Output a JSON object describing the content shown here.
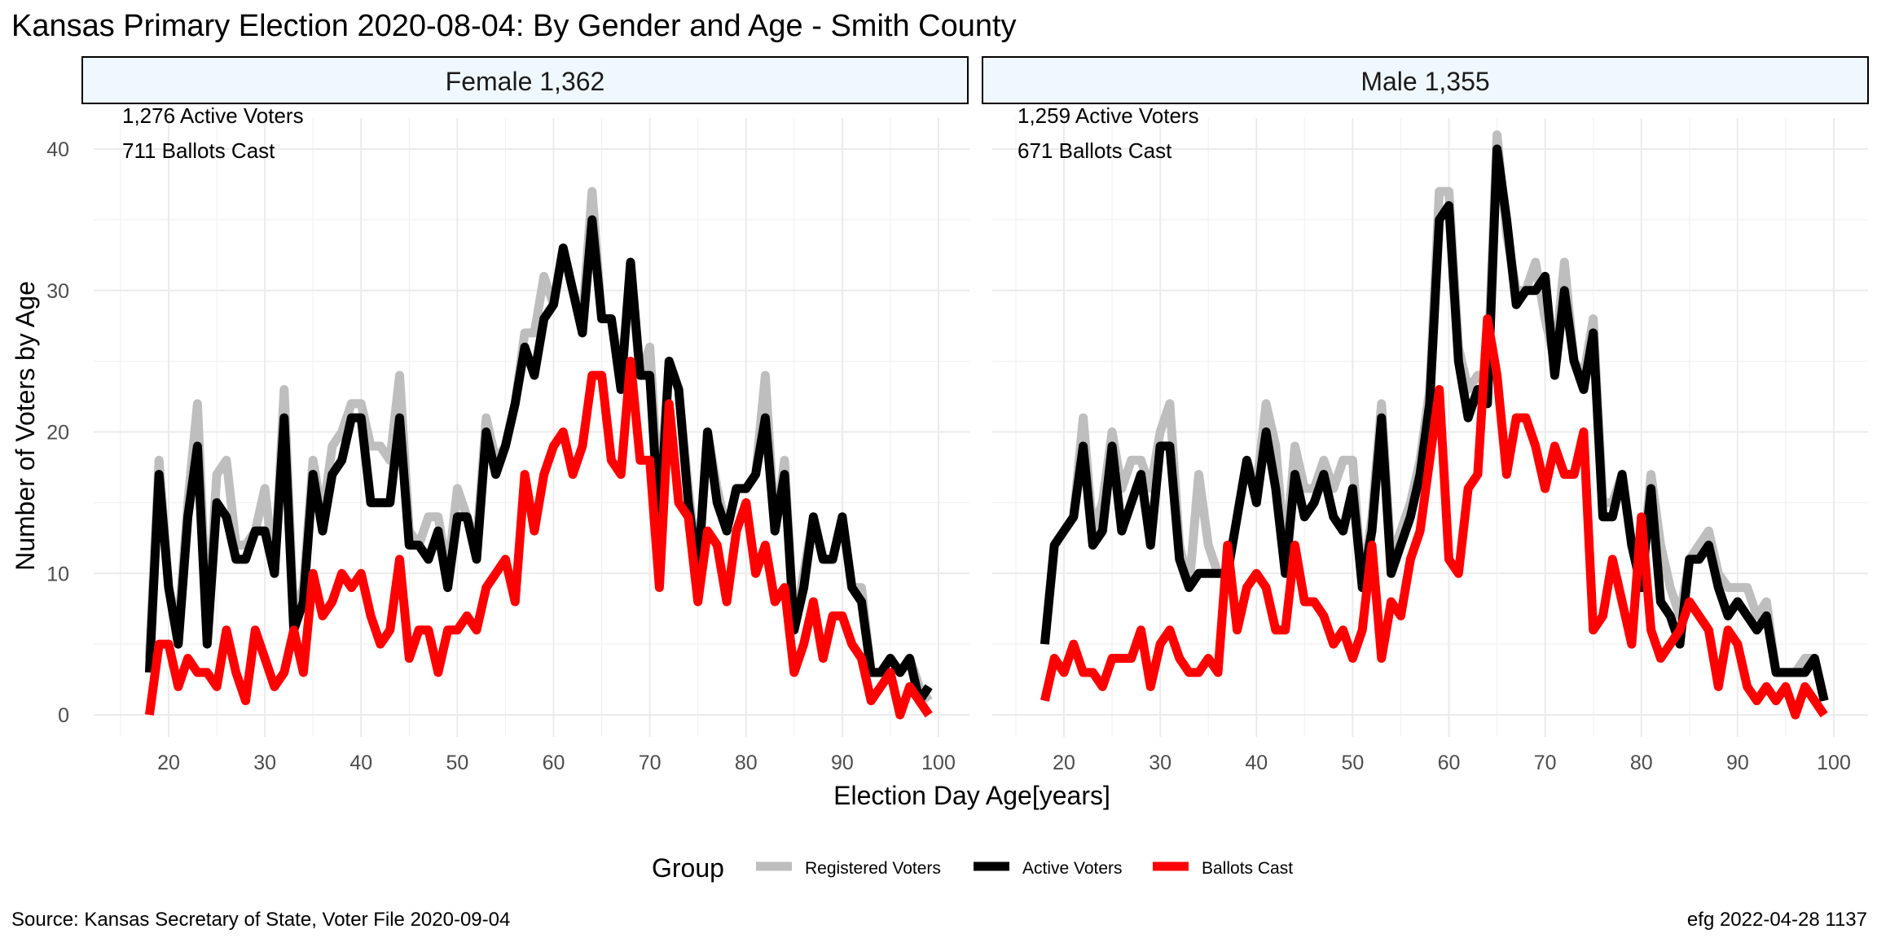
{
  "title": "Kansas Primary Election 2020-08-04:  By Gender and Age - Smith County",
  "source": "Source:  Kansas Secretary of State, Voter File  2020-09-04",
  "stamp": "efg 2022-04-28 1137",
  "legend": {
    "title": "Group",
    "items": [
      {
        "label": "Registered Voters",
        "color": "#bebebe"
      },
      {
        "label": "Active Voters",
        "color": "#000000"
      },
      {
        "label": "Ballots Cast",
        "color": "#ff0000"
      }
    ]
  },
  "chart_data": {
    "type": "line",
    "xlabel": "Election Day Age[years]",
    "ylabel": "Number of Voters by Age",
    "xlim": [
      18,
      99
    ],
    "ylim": [
      0,
      40
    ],
    "x_ticks": [
      20,
      30,
      40,
      50,
      60,
      70,
      80,
      90,
      100
    ],
    "y_ticks": [
      0,
      10,
      20,
      30,
      40
    ],
    "x": [
      18,
      19,
      20,
      21,
      22,
      23,
      24,
      25,
      26,
      27,
      28,
      29,
      30,
      31,
      32,
      33,
      34,
      35,
      36,
      37,
      38,
      39,
      40,
      41,
      42,
      43,
      44,
      45,
      46,
      47,
      48,
      49,
      50,
      51,
      52,
      53,
      54,
      55,
      56,
      57,
      58,
      59,
      60,
      61,
      62,
      63,
      64,
      65,
      66,
      67,
      68,
      69,
      70,
      71,
      72,
      73,
      74,
      75,
      76,
      77,
      78,
      79,
      80,
      81,
      82,
      83,
      84,
      85,
      86,
      87,
      88,
      89,
      90,
      91,
      92,
      93,
      94,
      95,
      96,
      97,
      98,
      99
    ],
    "panels": [
      {
        "label": "Female 1,362",
        "annotations": [
          "1,276 Active Voters",
          "711 Ballots Cast"
        ],
        "series": [
          {
            "name": "Registered Voters",
            "values": [
              4,
              18,
              9,
              6,
              15,
              22,
              6,
              17,
              18,
              12,
              12,
              13,
              16,
              10,
              23,
              7,
              9,
              18,
              14,
              19,
              20,
              22,
              22,
              19,
              19,
              18,
              24,
              13,
              12,
              14,
              14,
              10,
              16,
              14,
              12,
              21,
              18,
              19,
              22,
              27,
              27,
              31,
              29,
              33,
              30,
              28,
              37,
              28,
              28,
              24,
              31,
              24,
              26,
              15,
              25,
              23,
              16,
              10,
              20,
              16,
              13,
              16,
              16,
              17,
              24,
              13,
              18,
              6,
              10,
              14,
              11,
              11,
              14,
              9,
              9,
              3,
              3,
              4,
              3,
              4,
              2,
              1
            ]
          },
          {
            "name": "Active Voters",
            "values": [
              3,
              17,
              9,
              5,
              14,
              19,
              5,
              15,
              14,
              11,
              11,
              13,
              13,
              10,
              21,
              6,
              8,
              17,
              13,
              17,
              18,
              21,
              21,
              15,
              15,
              15,
              21,
              12,
              12,
              11,
              13,
              9,
              14,
              14,
              11,
              20,
              17,
              19,
              22,
              26,
              24,
              28,
              29,
              33,
              30,
              27,
              35,
              28,
              28,
              23,
              32,
              24,
              24,
              13,
              25,
              23,
              15,
              10,
              20,
              15,
              13,
              16,
              16,
              17,
              21,
              13,
              17,
              6,
              9,
              14,
              11,
              11,
              14,
              9,
              8,
              3,
              3,
              4,
              3,
              4,
              1,
              2
            ]
          },
          {
            "name": "Ballots Cast",
            "values": [
              0,
              5,
              5,
              2,
              4,
              3,
              3,
              2,
              6,
              3,
              1,
              6,
              4,
              2,
              3,
              6,
              3,
              10,
              7,
              8,
              10,
              9,
              10,
              7,
              5,
              6,
              11,
              4,
              6,
              6,
              3,
              6,
              6,
              7,
              6,
              9,
              10,
              11,
              8,
              17,
              13,
              17,
              19,
              20,
              17,
              19,
              24,
              24,
              18,
              17,
              25,
              18,
              18,
              9,
              22,
              15,
              14,
              8,
              13,
              12,
              8,
              13,
              15,
              10,
              12,
              8,
              9,
              3,
              5,
              8,
              4,
              7,
              7,
              5,
              4,
              1,
              2,
              3,
              0,
              2,
              1,
              0
            ]
          }
        ]
      },
      {
        "label": "Male 1,355",
        "annotations": [
          "1,259 Active Voters",
          "671 Ballots Cast"
        ],
        "series": [
          {
            "name": "Registered Voters",
            "values": [
              5,
              12,
              13,
              14,
              21,
              13,
              15,
              20,
              16,
              18,
              18,
              16,
              20,
              22,
              12,
              9,
              17,
              12,
              10,
              10,
              14,
              18,
              16,
              22,
              19,
              11,
              19,
              16,
              16,
              18,
              16,
              18,
              18,
              9,
              14,
              22,
              11,
              13,
              15,
              18,
              23,
              37,
              37,
              26,
              23,
              24,
              24,
              41,
              34,
              30,
              30,
              32,
              28,
              25,
              32,
              25,
              24,
              28,
              15,
              15,
              17,
              12,
              10,
              17,
              12,
              9,
              7,
              11,
              12,
              13,
              10,
              9,
              9,
              9,
              7,
              8,
              3,
              3,
              3,
              4,
              4,
              1
            ]
          },
          {
            "name": "Active Voters",
            "values": [
              5,
              12,
              13,
              14,
              19,
              12,
              13,
              19,
              13,
              15,
              17,
              12,
              19,
              19,
              11,
              9,
              10,
              10,
              10,
              10,
              14,
              18,
              15,
              20,
              16,
              10,
              17,
              14,
              15,
              17,
              14,
              13,
              16,
              9,
              13,
              21,
              10,
              12,
              14,
              17,
              22,
              35,
              36,
              25,
              21,
              23,
              22,
              40,
              35,
              29,
              30,
              30,
              31,
              24,
              30,
              25,
              23,
              27,
              14,
              14,
              17,
              12,
              9,
              16,
              8,
              7,
              5,
              11,
              11,
              12,
              9,
              7,
              8,
              7,
              6,
              7,
              3,
              3,
              3,
              3,
              4,
              1
            ]
          },
          {
            "name": "Ballots Cast",
            "values": [
              1,
              4,
              3,
              5,
              3,
              3,
              2,
              4,
              4,
              4,
              6,
              2,
              5,
              6,
              4,
              3,
              3,
              4,
              3,
              12,
              6,
              9,
              10,
              9,
              6,
              6,
              12,
              8,
              8,
              7,
              5,
              6,
              4,
              6,
              12,
              4,
              8,
              7,
              11,
              13,
              18,
              23,
              11,
              10,
              16,
              17,
              28,
              24,
              17,
              21,
              21,
              19,
              16,
              19,
              17,
              17,
              20,
              6,
              7,
              11,
              8,
              5,
              14,
              6,
              4,
              5,
              6,
              8,
              7,
              6,
              2,
              6,
              5,
              2,
              1,
              2,
              1,
              2,
              0,
              2,
              1,
              0
            ]
          }
        ]
      }
    ]
  }
}
